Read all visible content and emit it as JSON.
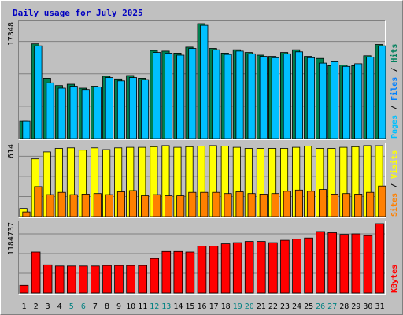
{
  "chart_data": {
    "title": "Daily usage for July 2025",
    "x": [
      "1",
      "2",
      "3",
      "4",
      "5",
      "6",
      "7",
      "8",
      "9",
      "10",
      "11",
      "12",
      "13",
      "14",
      "15",
      "16",
      "17",
      "18",
      "19",
      "20",
      "21",
      "22",
      "23",
      "24",
      "25",
      "26",
      "27",
      "28",
      "29",
      "30",
      "31"
    ],
    "x_colors": [
      "#000000",
      "#000000",
      "#000000",
      "#000000",
      "#008080",
      "#008080",
      "#000000",
      "#000000",
      "#000000",
      "#000000",
      "#000000",
      "#008080",
      "#008080",
      "#000000",
      "#000000",
      "#000000",
      "#000000",
      "#000000",
      "#008080",
      "#008080",
      "#000000",
      "#000000",
      "#000000",
      "#000000",
      "#000000",
      "#008080",
      "#008080",
      "#000000",
      "#000000",
      "#000000",
      "#000000"
    ],
    "panels": [
      {
        "type": "bar",
        "ymax_label": "17348",
        "ylim": [
          0,
          17348
        ],
        "legend": [
          {
            "text": "Pages",
            "color": "#00c0ff"
          },
          {
            "text": " / ",
            "color": "#000000"
          },
          {
            "text": "Files",
            "color": "#0080ff"
          },
          {
            "text": " / ",
            "color": "#000000"
          },
          {
            "text": "Hits",
            "color": "#00805c"
          }
        ],
        "series": [
          {
            "name": "Hits",
            "color": "#008050",
            "values": [
              2600,
              14300,
              9100,
              8000,
              8200,
              7600,
              7900,
              9400,
              9000,
              9500,
              9100,
              13300,
              13200,
              12900,
              13800,
              17348,
              13600,
              12900,
              13400,
              13000,
              12600,
              12400,
              13000,
              13400,
              12400,
              12100,
              11000,
              11100,
              11000,
              12500,
              14200
            ]
          },
          {
            "name": "Files",
            "color": "#00c0ff",
            "values": [
              2600,
              14000,
              8400,
              7600,
              7900,
              7400,
              7800,
              9200,
              8700,
              9200,
              8900,
              13000,
              12900,
              12600,
              13600,
              17100,
              13400,
              12700,
              13200,
              12800,
              12400,
              12200,
              12800,
              13100,
              12200,
              11400,
              11600,
              10900,
              11300,
              12300,
              14000
            ]
          }
        ]
      },
      {
        "type": "bar",
        "ymax_label": "614",
        "ylim": [
          0,
          614
        ],
        "legend": [
          {
            "text": "Sites",
            "color": "#ff8000"
          },
          {
            "text": " / ",
            "color": "#000000"
          },
          {
            "text": "Visits",
            "color": "#ffff00"
          }
        ],
        "series": [
          {
            "name": "Visits",
            "color": "#ffff00",
            "values": [
              70,
              500,
              560,
              590,
              595,
              575,
              595,
              580,
              595,
              600,
              600,
              605,
              615,
              600,
              605,
              610,
              615,
              610,
              600,
              590,
              590,
              590,
              590,
              600,
              610,
              590,
              590,
              600,
              605,
              615,
              614
            ]
          },
          {
            "name": "Sites",
            "color": "#ff8000",
            "values": [
              40,
              260,
              190,
              210,
              190,
              195,
              200,
              190,
              215,
              225,
              180,
              190,
              180,
              180,
              210,
              210,
              210,
              200,
              215,
              200,
              195,
              200,
              220,
              230,
              220,
              235,
              195,
              200,
              195,
              210,
              265
            ]
          }
        ]
      },
      {
        "type": "bar",
        "ymax_label": "1184737",
        "ylim": [
          0,
          1184737
        ],
        "legend": [
          {
            "text": "KBytes",
            "color": "#ff0000"
          }
        ],
        "series": [
          {
            "name": "KBytes",
            "color": "#ff0000",
            "values": [
              130000,
              700000,
              480000,
              460000,
              460000,
              460000,
              460000,
              470000,
              470000,
              470000,
              470000,
              590000,
              710000,
              710000,
              700000,
              800000,
              800000,
              840000,
              860000,
              880000,
              880000,
              860000,
              900000,
              920000,
              940000,
              1050000,
              1030000,
              1000000,
              1010000,
              980000,
              1184737
            ]
          }
        ]
      }
    ]
  }
}
